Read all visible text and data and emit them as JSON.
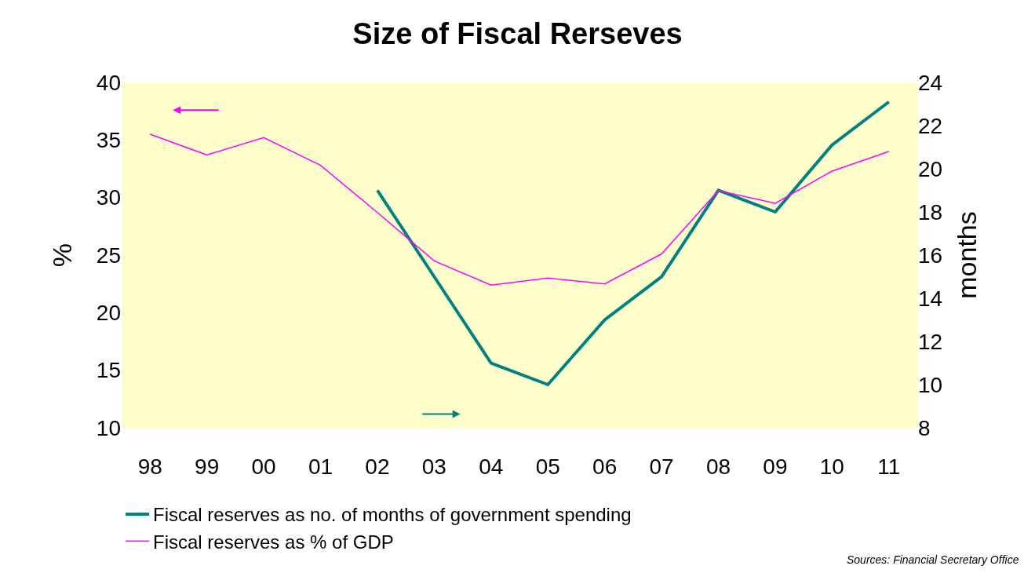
{
  "chart_data": {
    "type": "line",
    "title": "Size of Fiscal Rerseves",
    "ylabel": "%",
    "y2label": "months",
    "categories": [
      "98",
      "99",
      "00",
      "01",
      "02",
      "03",
      "04",
      "05",
      "06",
      "07",
      "08",
      "09",
      "10",
      "11"
    ],
    "series": [
      {
        "name": "Fiscal reserves as no. of months of government spending",
        "color": "#008080",
        "axis": "y2",
        "values": [
          null,
          null,
          null,
          null,
          19,
          15,
          11,
          10,
          13,
          15,
          19,
          18,
          21.1,
          23.1
        ]
      },
      {
        "name": "Fiscal reserves as % of GDP",
        "color": "#ff00ff",
        "values": [
          35.5,
          33.7,
          35.2,
          32.8,
          28.7,
          24.5,
          22.4,
          23.0,
          22.5,
          25.1,
          30.6,
          29.5,
          32.3,
          34.0
        ]
      }
    ],
    "ylim": [
      10,
      40
    ],
    "yticks": [
      10,
      15,
      20,
      25,
      30,
      35,
      40
    ],
    "y2lim": [
      8,
      24
    ],
    "y2ticks": [
      8,
      10,
      12,
      14,
      16,
      18,
      20,
      22,
      24
    ],
    "grid": false,
    "legend": "bottom left",
    "marker": "none",
    "line_style": "solid",
    "annotations": [
      "Sources: Financial Secretary Office"
    ]
  }
}
